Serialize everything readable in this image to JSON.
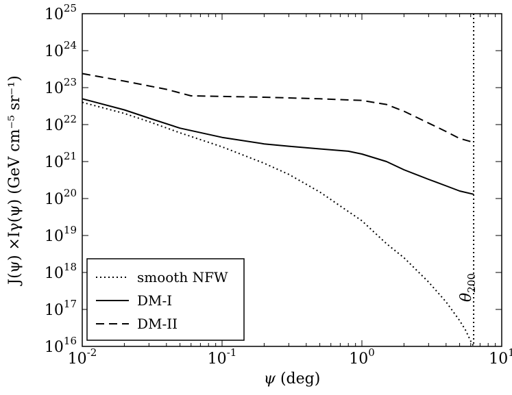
{
  "chart_data": {
    "type": "line",
    "title": "",
    "xscale": "log",
    "yscale": "log",
    "xlim": [
      0.01,
      10
    ],
    "ylim": [
      1e+16,
      1e+25
    ],
    "x_ticks": [
      {
        "value": 0.01,
        "base": "10",
        "exp": "-2"
      },
      {
        "value": 0.1,
        "base": "10",
        "exp": "-1"
      },
      {
        "value": 1,
        "base": "10",
        "exp": "0"
      },
      {
        "value": 10,
        "base": "10",
        "exp": "1"
      }
    ],
    "y_ticks": [
      {
        "value": 1e+16,
        "base": "10",
        "exp": "16"
      },
      {
        "value": 1e+17,
        "base": "10",
        "exp": "17"
      },
      {
        "value": 1e+18,
        "base": "10",
        "exp": "18"
      },
      {
        "value": 1e+19,
        "base": "10",
        "exp": "19"
      },
      {
        "value": 1e+20,
        "base": "10",
        "exp": "20"
      },
      {
        "value": 1e+21,
        "base": "10",
        "exp": "21"
      },
      {
        "value": 1e+22,
        "base": "10",
        "exp": "22"
      },
      {
        "value": 1e+23,
        "base": "10",
        "exp": "23"
      },
      {
        "value": 1e+24,
        "base": "10",
        "exp": "24"
      },
      {
        "value": 1e+25,
        "base": "10",
        "exp": "25"
      }
    ],
    "xlabel": {
      "symbol": "ψ",
      "text": " (deg)"
    },
    "ylabel": "J(ψ) ×Iγ(ψ) (GeV cm⁻⁵ sr⁻¹)",
    "legend_position": "lower-left",
    "series": [
      {
        "name": "smooth NFW",
        "style": "dotted",
        "x": [
          0.01,
          0.02,
          0.03,
          0.05,
          0.1,
          0.2,
          0.3,
          0.5,
          1.0,
          1.5,
          2.0,
          3.0,
          4.0,
          5.0,
          5.5,
          6.0,
          6.3
        ],
        "y": [
          4e+22,
          2e+22,
          1.2e+22,
          6e+21,
          2.5e+21,
          9e+20,
          4.5e+20,
          1.5e+20,
          2.5e+19,
          6e+18,
          2.5e+18,
          5.5e+17,
          1.6e+17,
          5e+16,
          2.8e+16,
          1.4e+16,
          1e+16
        ]
      },
      {
        "name": "DM-I",
        "style": "solid",
        "x": [
          0.01,
          0.02,
          0.03,
          0.05,
          0.1,
          0.2,
          0.3,
          0.5,
          0.8,
          1.0,
          1.5,
          2.0,
          3.0,
          4.0,
          5.0,
          6.3
        ],
        "y": [
          5e+22,
          2.5e+22,
          1.5e+22,
          8e+21,
          4.5e+21,
          3e+21,
          2.6e+21,
          2.2e+21,
          1.9e+21,
          1.6e+21,
          1e+21,
          6e+20,
          3.3e+20,
          2.2e+20,
          1.6e+20,
          1.3e+20
        ]
      },
      {
        "name": "DM-II",
        "style": "dashed",
        "x": [
          0.01,
          0.02,
          0.04,
          0.06,
          0.1,
          0.2,
          0.5,
          1.0,
          1.5,
          2.0,
          3.0,
          4.0,
          5.0,
          6.3
        ],
        "y": [
          2.4e+23,
          1.5e+23,
          9e+22,
          6e+22,
          5.8e+22,
          5.5e+22,
          5e+22,
          4.5e+22,
          3.5e+22,
          2.3e+22,
          1.1e+22,
          6.5e+21,
          4.2e+21,
          3.3e+21
        ]
      }
    ],
    "vline": {
      "x": 6.3,
      "style": "dotted",
      "label_base": "θ",
      "label_sub": "200"
    }
  }
}
